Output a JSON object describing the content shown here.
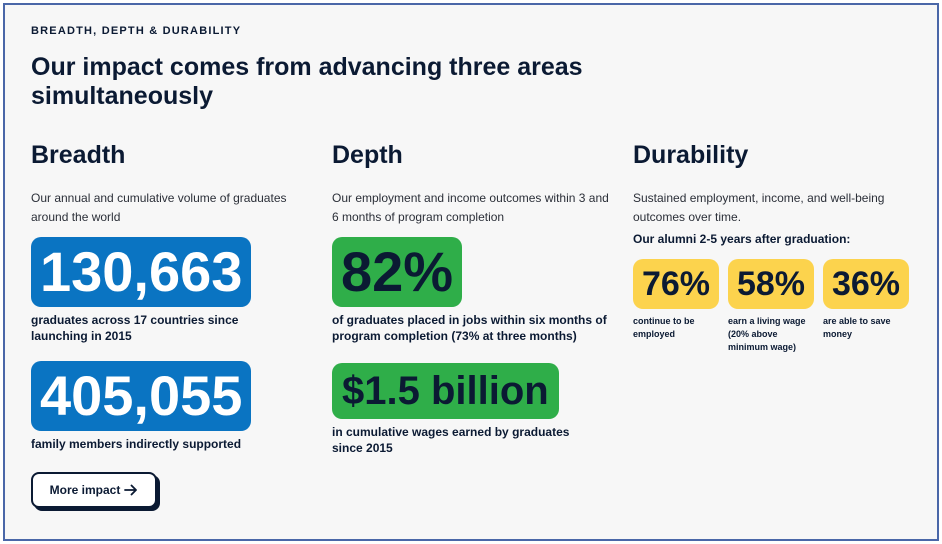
{
  "eyebrow": "BREADTH, DEPTH & DURABILITY",
  "headline": "Our impact comes from advancing three areas simultaneously",
  "breadth": {
    "title": "Breadth",
    "description": "Our annual and cumulative volume of graduates around the world",
    "stats": [
      {
        "value": "130,663",
        "caption": "graduates across 17 countries since launching in 2015"
      },
      {
        "value": "405,055",
        "caption": "family members indirectly supported"
      }
    ]
  },
  "depth": {
    "title": "Depth",
    "description": "Our employment and income outcomes within 3 and 6 months of program completion",
    "stats": [
      {
        "value": "82%",
        "caption": "of graduates placed in jobs within six months of program completion (73% at three months)"
      },
      {
        "value": "$1.5 billion",
        "caption": "in cumulative wages earned by graduates since 2015"
      }
    ]
  },
  "durability": {
    "title": "Durability",
    "description": "Sustained employment, income, and well-being outcomes over time.",
    "subheading": "Our alumni 2-5 years after graduation:",
    "stats": [
      {
        "value": "76%",
        "caption": "continue to be employed"
      },
      {
        "value": "58%",
        "caption": "earn a living wage (20% above minimum wage)"
      },
      {
        "value": "36%",
        "caption": "are able to save money"
      }
    ]
  },
  "cta": {
    "label": "More impact",
    "icon": "arrow-right-icon"
  },
  "colors": {
    "blue": "#0a74c2",
    "green": "#2fae49",
    "yellow": "#fcd34d",
    "navy": "#0b1a33",
    "frame": "#4a67a8"
  }
}
